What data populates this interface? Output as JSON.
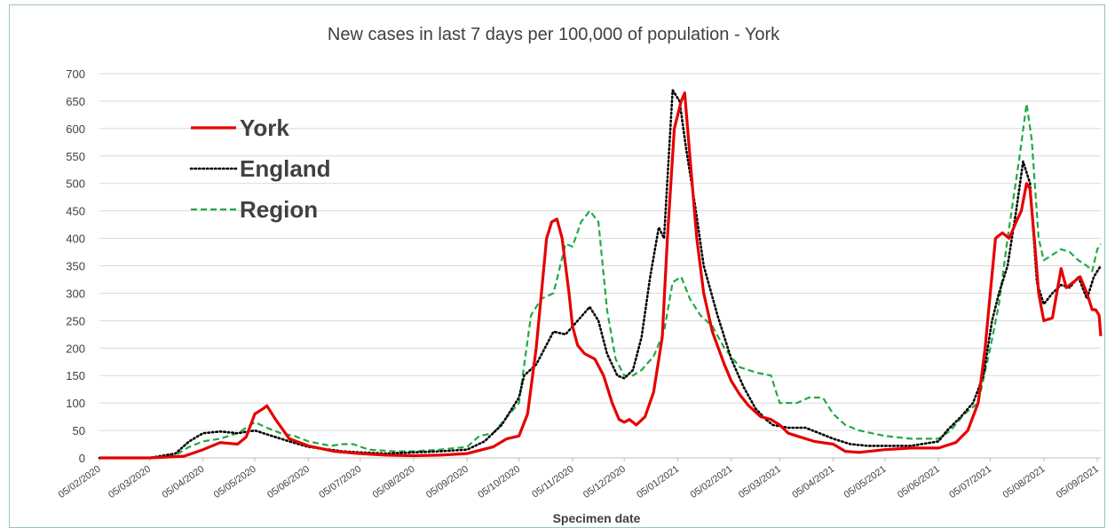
{
  "chart_data": {
    "type": "line",
    "title": "New cases in last 7 days per 100,000 of population - York",
    "xlabel": "Specimen date",
    "ylabel": "",
    "ylim": [
      0,
      700
    ],
    "yticks": [
      0,
      50,
      100,
      150,
      200,
      250,
      300,
      350,
      400,
      450,
      500,
      550,
      600,
      650,
      700
    ],
    "xlim": [
      "2020-02-05",
      "2021-09-07"
    ],
    "xticks": [
      "2020-02-05",
      "2020-03-05",
      "2020-04-05",
      "2020-05-05",
      "2020-06-05",
      "2020-07-05",
      "2020-08-05",
      "2020-09-05",
      "2020-10-05",
      "2020-11-05",
      "2020-12-05",
      "2021-01-05",
      "2021-02-05",
      "2021-03-05",
      "2021-04-05",
      "2021-05-05",
      "2021-06-05",
      "2021-07-05",
      "2021-08-05",
      "2021-09-05"
    ],
    "xtick_labels": [
      "05/02/2020",
      "05/03/2020",
      "05/04/2020",
      "05/05/2020",
      "05/06/2020",
      "05/07/2020",
      "05/08/2020",
      "05/09/2020",
      "05/10/2020",
      "05/11/2020",
      "05/12/2020",
      "05/01/2021",
      "05/02/2021",
      "05/03/2021",
      "05/04/2021",
      "05/05/2021",
      "05/06/2021",
      "05/07/2021",
      "05/08/2021",
      "05/09/2021"
    ],
    "grid": true,
    "legend": "top-left",
    "series": [
      {
        "name": "York",
        "color": "#e60000",
        "dash": "solid",
        "points": [
          [
            "2020-02-05",
            0
          ],
          [
            "2020-03-05",
            0
          ],
          [
            "2020-03-25",
            3
          ],
          [
            "2020-04-05",
            15
          ],
          [
            "2020-04-15",
            28
          ],
          [
            "2020-04-25",
            25
          ],
          [
            "2020-04-30",
            38
          ],
          [
            "2020-05-05",
            80
          ],
          [
            "2020-05-10",
            90
          ],
          [
            "2020-05-12",
            95
          ],
          [
            "2020-05-17",
            70
          ],
          [
            "2020-05-25",
            35
          ],
          [
            "2020-06-05",
            22
          ],
          [
            "2020-06-20",
            12
          ],
          [
            "2020-07-05",
            8
          ],
          [
            "2020-07-20",
            5
          ],
          [
            "2020-08-05",
            4
          ],
          [
            "2020-08-20",
            5
          ],
          [
            "2020-09-05",
            8
          ],
          [
            "2020-09-20",
            20
          ],
          [
            "2020-09-28",
            35
          ],
          [
            "2020-10-05",
            40
          ],
          [
            "2020-10-10",
            80
          ],
          [
            "2020-10-15",
            200
          ],
          [
            "2020-10-18",
            300
          ],
          [
            "2020-10-21",
            400
          ],
          [
            "2020-10-24",
            430
          ],
          [
            "2020-10-27",
            435
          ],
          [
            "2020-10-30",
            400
          ],
          [
            "2020-11-03",
            300
          ],
          [
            "2020-11-05",
            240
          ],
          [
            "2020-11-08",
            205
          ],
          [
            "2020-11-12",
            190
          ],
          [
            "2020-11-18",
            180
          ],
          [
            "2020-11-23",
            150
          ],
          [
            "2020-11-28",
            100
          ],
          [
            "2020-12-02",
            70
          ],
          [
            "2020-12-05",
            65
          ],
          [
            "2020-12-08",
            70
          ],
          [
            "2020-12-12",
            60
          ],
          [
            "2020-12-17",
            75
          ],
          [
            "2020-12-22",
            120
          ],
          [
            "2020-12-27",
            220
          ],
          [
            "2020-12-30",
            400
          ],
          [
            "2021-01-03",
            600
          ],
          [
            "2021-01-07",
            650
          ],
          [
            "2021-01-09",
            665
          ],
          [
            "2021-01-12",
            550
          ],
          [
            "2021-01-16",
            400
          ],
          [
            "2021-01-20",
            300
          ],
          [
            "2021-01-25",
            230
          ],
          [
            "2021-02-01",
            170
          ],
          [
            "2021-02-05",
            140
          ],
          [
            "2021-02-10",
            115
          ],
          [
            "2021-02-15",
            95
          ],
          [
            "2021-02-22",
            75
          ],
          [
            "2021-02-28",
            70
          ],
          [
            "2021-03-05",
            60
          ],
          [
            "2021-03-10",
            45
          ],
          [
            "2021-03-15",
            40
          ],
          [
            "2021-03-25",
            30
          ],
          [
            "2021-04-05",
            25
          ],
          [
            "2021-04-12",
            12
          ],
          [
            "2021-04-20",
            10
          ],
          [
            "2021-05-05",
            15
          ],
          [
            "2021-05-20",
            18
          ],
          [
            "2021-06-05",
            18
          ],
          [
            "2021-06-15",
            28
          ],
          [
            "2021-06-22",
            50
          ],
          [
            "2021-06-28",
            100
          ],
          [
            "2021-07-02",
            200
          ],
          [
            "2021-07-05",
            300
          ],
          [
            "2021-07-08",
            400
          ],
          [
            "2021-07-12",
            410
          ],
          [
            "2021-07-16",
            400
          ],
          [
            "2021-07-20",
            430
          ],
          [
            "2021-07-23",
            450
          ],
          [
            "2021-07-26",
            500
          ],
          [
            "2021-07-28",
            490
          ],
          [
            "2021-07-31",
            380
          ],
          [
            "2021-08-02",
            300
          ],
          [
            "2021-08-05",
            250
          ],
          [
            "2021-08-10",
            255
          ],
          [
            "2021-08-15",
            345
          ],
          [
            "2021-08-18",
            310
          ],
          [
            "2021-08-22",
            320
          ],
          [
            "2021-08-26",
            330
          ],
          [
            "2021-08-30",
            300
          ],
          [
            "2021-09-02",
            270
          ],
          [
            "2021-09-04",
            270
          ],
          [
            "2021-09-06",
            260
          ],
          [
            "2021-09-07",
            222
          ]
        ]
      },
      {
        "name": "England",
        "color": "#000000",
        "dash": "dotted",
        "points": [
          [
            "2020-02-05",
            0
          ],
          [
            "2020-03-05",
            0
          ],
          [
            "2020-03-20",
            8
          ],
          [
            "2020-03-28",
            30
          ],
          [
            "2020-04-05",
            45
          ],
          [
            "2020-04-15",
            48
          ],
          [
            "2020-04-25",
            45
          ],
          [
            "2020-05-05",
            50
          ],
          [
            "2020-05-15",
            40
          ],
          [
            "2020-05-25",
            30
          ],
          [
            "2020-06-05",
            20
          ],
          [
            "2020-06-25",
            12
          ],
          [
            "2020-07-05",
            10
          ],
          [
            "2020-07-20",
            8
          ],
          [
            "2020-08-05",
            10
          ],
          [
            "2020-08-20",
            12
          ],
          [
            "2020-09-05",
            15
          ],
          [
            "2020-09-15",
            30
          ],
          [
            "2020-09-25",
            60
          ],
          [
            "2020-10-05",
            110
          ],
          [
            "2020-10-08",
            150
          ],
          [
            "2020-10-15",
            170
          ],
          [
            "2020-10-25",
            230
          ],
          [
            "2020-11-01",
            225
          ],
          [
            "2020-11-08",
            250
          ],
          [
            "2020-11-15",
            275
          ],
          [
            "2020-11-20",
            250
          ],
          [
            "2020-11-25",
            190
          ],
          [
            "2020-12-01",
            150
          ],
          [
            "2020-12-05",
            145
          ],
          [
            "2020-12-10",
            160
          ],
          [
            "2020-12-15",
            220
          ],
          [
            "2020-12-20",
            330
          ],
          [
            "2020-12-25",
            420
          ],
          [
            "2020-12-28",
            400
          ],
          [
            "2021-01-02",
            670
          ],
          [
            "2021-01-06",
            650
          ],
          [
            "2021-01-10",
            560
          ],
          [
            "2021-01-15",
            460
          ],
          [
            "2021-01-20",
            350
          ],
          [
            "2021-01-28",
            260
          ],
          [
            "2021-02-05",
            180
          ],
          [
            "2021-02-12",
            130
          ],
          [
            "2021-02-19",
            90
          ],
          [
            "2021-02-25",
            70
          ],
          [
            "2021-03-01",
            60
          ],
          [
            "2021-03-10",
            55
          ],
          [
            "2021-03-20",
            55
          ],
          [
            "2021-03-28",
            45
          ],
          [
            "2021-04-05",
            35
          ],
          [
            "2021-04-15",
            25
          ],
          [
            "2021-04-25",
            22
          ],
          [
            "2021-05-05",
            22
          ],
          [
            "2021-05-20",
            22
          ],
          [
            "2021-06-05",
            30
          ],
          [
            "2021-06-10",
            50
          ],
          [
            "2021-06-18",
            75
          ],
          [
            "2021-06-25",
            100
          ],
          [
            "2021-07-01",
            150
          ],
          [
            "2021-07-06",
            250
          ],
          [
            "2021-07-10",
            300
          ],
          [
            "2021-07-15",
            350
          ],
          [
            "2021-07-20",
            450
          ],
          [
            "2021-07-24",
            540
          ],
          [
            "2021-07-28",
            500
          ],
          [
            "2021-08-01",
            320
          ],
          [
            "2021-08-05",
            280
          ],
          [
            "2021-08-10",
            300
          ],
          [
            "2021-08-15",
            315
          ],
          [
            "2021-08-20",
            310
          ],
          [
            "2021-08-25",
            330
          ],
          [
            "2021-08-30",
            290
          ],
          [
            "2021-09-03",
            330
          ],
          [
            "2021-09-07",
            350
          ]
        ]
      },
      {
        "name": "Region",
        "color": "#22aa44",
        "dash": "dashed",
        "points": [
          [
            "2020-02-05",
            0
          ],
          [
            "2020-03-05",
            0
          ],
          [
            "2020-03-20",
            5
          ],
          [
            "2020-03-28",
            20
          ],
          [
            "2020-04-05",
            30
          ],
          [
            "2020-04-15",
            35
          ],
          [
            "2020-04-25",
            45
          ],
          [
            "2020-05-05",
            65
          ],
          [
            "2020-05-12",
            55
          ],
          [
            "2020-05-20",
            45
          ],
          [
            "2020-05-28",
            40
          ],
          [
            "2020-06-05",
            30
          ],
          [
            "2020-06-18",
            22
          ],
          [
            "2020-06-25",
            25
          ],
          [
            "2020-07-01",
            25
          ],
          [
            "2020-07-10",
            15
          ],
          [
            "2020-07-25",
            12
          ],
          [
            "2020-08-05",
            12
          ],
          [
            "2020-08-20",
            15
          ],
          [
            "2020-09-05",
            20
          ],
          [
            "2020-09-12",
            40
          ],
          [
            "2020-09-20",
            45
          ],
          [
            "2020-10-05",
            100
          ],
          [
            "2020-10-12",
            260
          ],
          [
            "2020-10-18",
            290
          ],
          [
            "2020-10-25",
            300
          ],
          [
            "2020-11-01",
            390
          ],
          [
            "2020-11-05",
            385
          ],
          [
            "2020-11-10",
            430
          ],
          [
            "2020-11-15",
            450
          ],
          [
            "2020-11-20",
            430
          ],
          [
            "2020-11-25",
            270
          ],
          [
            "2020-11-30",
            180
          ],
          [
            "2020-12-05",
            150
          ],
          [
            "2020-12-10",
            150
          ],
          [
            "2020-12-15",
            160
          ],
          [
            "2020-12-22",
            185
          ],
          [
            "2020-12-28",
            230
          ],
          [
            "2021-01-02",
            320
          ],
          [
            "2021-01-07",
            330
          ],
          [
            "2021-01-12",
            290
          ],
          [
            "2021-01-18",
            260
          ],
          [
            "2021-01-25",
            240
          ],
          [
            "2021-02-01",
            200
          ],
          [
            "2021-02-10",
            165
          ],
          [
            "2021-02-20",
            155
          ],
          [
            "2021-02-28",
            150
          ],
          [
            "2021-03-05",
            100
          ],
          [
            "2021-03-15",
            100
          ],
          [
            "2021-03-22",
            110
          ],
          [
            "2021-03-30",
            110
          ],
          [
            "2021-04-05",
            80
          ],
          [
            "2021-04-12",
            60
          ],
          [
            "2021-04-20",
            50
          ],
          [
            "2021-05-05",
            40
          ],
          [
            "2021-05-20",
            35
          ],
          [
            "2021-06-05",
            35
          ],
          [
            "2021-06-12",
            50
          ],
          [
            "2021-06-20",
            80
          ],
          [
            "2021-06-28",
            100
          ],
          [
            "2021-07-05",
            200
          ],
          [
            "2021-07-10",
            280
          ],
          [
            "2021-07-15",
            400
          ],
          [
            "2021-07-22",
            550
          ],
          [
            "2021-07-26",
            645
          ],
          [
            "2021-07-29",
            580
          ],
          [
            "2021-08-02",
            400
          ],
          [
            "2021-08-05",
            360
          ],
          [
            "2021-08-10",
            370
          ],
          [
            "2021-08-15",
            380
          ],
          [
            "2021-08-20",
            375
          ],
          [
            "2021-08-25",
            360
          ],
          [
            "2021-08-30",
            350
          ],
          [
            "2021-09-02",
            340
          ],
          [
            "2021-09-05",
            380
          ],
          [
            "2021-09-07",
            390
          ]
        ]
      }
    ]
  }
}
